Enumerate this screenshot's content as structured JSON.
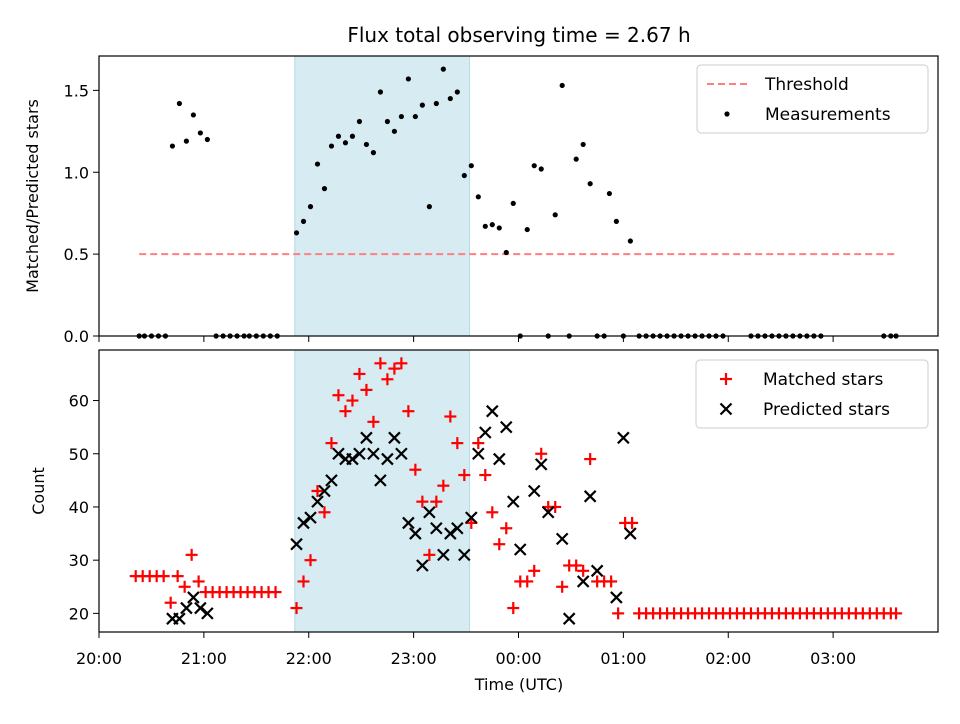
{
  "title": "Flux total observing time = 2.67 h",
  "colors": {
    "threshold": "#ff7f7f",
    "measurements": "#000000",
    "matched": "#ff0000",
    "predicted": "#000000",
    "shade": "#add8e6"
  },
  "chart_data": [
    {
      "type": "scatter",
      "ylabel": "Matched/Predicted stars",
      "xlim": [
        "20:00",
        "04:00"
      ],
      "ylim": [
        0,
        1.71
      ],
      "yticks": [
        0.0,
        0.5,
        1.0,
        1.5
      ],
      "ytick_labels": [
        "0.0",
        "0.5",
        "1.0",
        "1.5"
      ],
      "shaded_interval": [
        "21:52",
        "23:32"
      ],
      "legend_position": "upper right",
      "threshold": {
        "name": "Threshold",
        "style": "dashed",
        "y": 0.5,
        "x_range": [
          "20:23",
          "03:36"
        ]
      },
      "measurements": {
        "name": "Measurements",
        "points": [
          [
            "20:23",
            0
          ],
          [
            "20:26",
            0
          ],
          [
            "20:30",
            0
          ],
          [
            "20:34",
            0
          ],
          [
            "20:38",
            0
          ],
          [
            "20:42",
            1.16
          ],
          [
            "20:46",
            1.42
          ],
          [
            "20:50",
            1.19
          ],
          [
            "20:54",
            1.35
          ],
          [
            "20:58",
            1.24
          ],
          [
            "21:02",
            1.2
          ],
          [
            "21:07",
            0
          ],
          [
            "21:11",
            0
          ],
          [
            "21:15",
            0
          ],
          [
            "21:19",
            0
          ],
          [
            "21:23",
            0
          ],
          [
            "21:26",
            0
          ],
          [
            "21:30",
            0
          ],
          [
            "21:34",
            0
          ],
          [
            "21:38",
            0
          ],
          [
            "21:42",
            0
          ],
          [
            "21:53",
            0.63
          ],
          [
            "21:57",
            0.7
          ],
          [
            "22:01",
            0.79
          ],
          [
            "22:05",
            1.05
          ],
          [
            "22:09",
            0.9
          ],
          [
            "22:13",
            1.16
          ],
          [
            "22:17",
            1.22
          ],
          [
            "22:21",
            1.18
          ],
          [
            "22:25",
            1.22
          ],
          [
            "22:29",
            1.31
          ],
          [
            "22:33",
            1.17
          ],
          [
            "22:37",
            1.12
          ],
          [
            "22:41",
            1.49
          ],
          [
            "22:45",
            1.31
          ],
          [
            "22:49",
            1.25
          ],
          [
            "22:53",
            1.34
          ],
          [
            "22:57",
            1.57
          ],
          [
            "23:01",
            1.34
          ],
          [
            "23:05",
            1.41
          ],
          [
            "23:09",
            0.79
          ],
          [
            "23:13",
            1.42
          ],
          [
            "23:17",
            1.63
          ],
          [
            "23:21",
            1.45
          ],
          [
            "23:25",
            1.49
          ],
          [
            "23:29",
            0.98
          ],
          [
            "23:33",
            1.04
          ],
          [
            "23:37",
            0.85
          ],
          [
            "23:41",
            0.67
          ],
          [
            "23:45",
            0.68
          ],
          [
            "23:49",
            0.66
          ],
          [
            "23:53",
            0.51
          ],
          [
            "23:57",
            0.81
          ],
          [
            "00:01",
            0
          ],
          [
            "00:05",
            0.65
          ],
          [
            "00:09",
            1.04
          ],
          [
            "00:13",
            1.02
          ],
          [
            "00:17",
            0
          ],
          [
            "00:21",
            0.74
          ],
          [
            "00:25",
            1.53
          ],
          [
            "00:29",
            0
          ],
          [
            "00:33",
            1.08
          ],
          [
            "00:37",
            1.17
          ],
          [
            "00:41",
            0.93
          ],
          [
            "00:45",
            0
          ],
          [
            "00:49",
            0
          ],
          [
            "00:52",
            0.87
          ],
          [
            "00:56",
            0.7
          ],
          [
            "01:00",
            0
          ],
          [
            "01:04",
            0.58
          ],
          [
            "01:09",
            0
          ],
          [
            "01:13",
            0
          ],
          [
            "01:17",
            0
          ],
          [
            "01:21",
            0
          ],
          [
            "01:25",
            0
          ],
          [
            "01:29",
            0
          ],
          [
            "01:33",
            0
          ],
          [
            "01:37",
            0
          ],
          [
            "01:41",
            0
          ],
          [
            "01:45",
            0
          ],
          [
            "01:49",
            0
          ],
          [
            "01:53",
            0
          ],
          [
            "01:57",
            0
          ],
          [
            "02:13",
            0
          ],
          [
            "02:17",
            0
          ],
          [
            "02:21",
            0
          ],
          [
            "02:25",
            0
          ],
          [
            "02:29",
            0
          ],
          [
            "02:33",
            0
          ],
          [
            "02:37",
            0
          ],
          [
            "02:41",
            0
          ],
          [
            "02:45",
            0
          ],
          [
            "02:49",
            0
          ],
          [
            "02:53",
            0
          ],
          [
            "03:29",
            0
          ],
          [
            "03:33",
            0
          ],
          [
            "03:36",
            0
          ]
        ]
      }
    },
    {
      "type": "scatter",
      "ylabel": "Count",
      "xlabel": "Time (UTC)",
      "xlim": [
        "20:00",
        "04:00"
      ],
      "ylim": [
        16.5,
        69.5
      ],
      "yticks": [
        20,
        30,
        40,
        50,
        60
      ],
      "ytick_labels": [
        "20",
        "30",
        "40",
        "50",
        "60"
      ],
      "xticks": [
        "20:00",
        "21:00",
        "22:00",
        "23:00",
        "00:00",
        "01:00",
        "02:00",
        "03:00"
      ],
      "shaded_interval": [
        "21:52",
        "23:32"
      ],
      "legend_position": "upper right",
      "series": [
        {
          "name": "Matched stars",
          "marker": "plus",
          "points": [
            [
              "20:21",
              27
            ],
            [
              "20:25",
              27
            ],
            [
              "20:29",
              27
            ],
            [
              "20:33",
              27
            ],
            [
              "20:37",
              27
            ],
            [
              "20:41",
              22
            ],
            [
              "20:45",
              27
            ],
            [
              "20:49",
              25
            ],
            [
              "20:53",
              31
            ],
            [
              "20:57",
              26
            ],
            [
              "21:01",
              24
            ],
            [
              "21:05",
              24
            ],
            [
              "21:09",
              24
            ],
            [
              "21:13",
              24
            ],
            [
              "21:17",
              24
            ],
            [
              "21:21",
              24
            ],
            [
              "21:25",
              24
            ],
            [
              "21:29",
              24
            ],
            [
              "21:33",
              24
            ],
            [
              "21:37",
              24
            ],
            [
              "21:41",
              24
            ],
            [
              "21:53",
              21
            ],
            [
              "21:57",
              26
            ],
            [
              "22:01",
              30
            ],
            [
              "22:05",
              43
            ],
            [
              "22:09",
              39
            ],
            [
              "22:13",
              52
            ],
            [
              "22:17",
              61
            ],
            [
              "22:21",
              58
            ],
            [
              "22:25",
              60
            ],
            [
              "22:29",
              65
            ],
            [
              "22:33",
              62
            ],
            [
              "22:37",
              56
            ],
            [
              "22:41",
              67
            ],
            [
              "22:45",
              64
            ],
            [
              "22:49",
              66
            ],
            [
              "22:53",
              67
            ],
            [
              "22:57",
              58
            ],
            [
              "23:01",
              47
            ],
            [
              "23:05",
              41
            ],
            [
              "23:09",
              31
            ],
            [
              "23:13",
              41
            ],
            [
              "23:17",
              44
            ],
            [
              "23:21",
              57
            ],
            [
              "23:25",
              52
            ],
            [
              "23:29",
              46
            ],
            [
              "23:33",
              37
            ],
            [
              "23:37",
              52
            ],
            [
              "23:41",
              46
            ],
            [
              "23:45",
              39
            ],
            [
              "23:49",
              33
            ],
            [
              "23:53",
              36
            ],
            [
              "23:57",
              21
            ],
            [
              "00:01",
              26
            ],
            [
              "00:05",
              26
            ],
            [
              "00:09",
              28
            ],
            [
              "00:13",
              50
            ],
            [
              "00:17",
              40
            ],
            [
              "00:21",
              40
            ],
            [
              "00:25",
              25
            ],
            [
              "00:29",
              29
            ],
            [
              "00:33",
              29
            ],
            [
              "00:37",
              28
            ],
            [
              "00:41",
              49
            ],
            [
              "00:45",
              26
            ],
            [
              "00:49",
              26
            ],
            [
              "00:53",
              26
            ],
            [
              "00:57",
              20
            ],
            [
              "01:01",
              37
            ],
            [
              "01:05",
              37
            ],
            [
              "01:09",
              20
            ],
            [
              "01:13",
              20
            ],
            [
              "01:17",
              20
            ],
            [
              "01:21",
              20
            ],
            [
              "01:25",
              20
            ],
            [
              "01:29",
              20
            ],
            [
              "01:33",
              20
            ],
            [
              "01:37",
              20
            ],
            [
              "01:41",
              20
            ],
            [
              "01:45",
              20
            ],
            [
              "01:49",
              20
            ],
            [
              "01:53",
              20
            ],
            [
              "01:57",
              20
            ],
            [
              "02:01",
              20
            ],
            [
              "02:05",
              20
            ],
            [
              "02:09",
              20
            ],
            [
              "02:13",
              20
            ],
            [
              "02:17",
              20
            ],
            [
              "02:21",
              20
            ],
            [
              "02:25",
              20
            ],
            [
              "02:29",
              20
            ],
            [
              "02:33",
              20
            ],
            [
              "02:37",
              20
            ],
            [
              "02:41",
              20
            ],
            [
              "02:45",
              20
            ],
            [
              "02:49",
              20
            ],
            [
              "02:53",
              20
            ],
            [
              "02:57",
              20
            ],
            [
              "03:01",
              20
            ],
            [
              "03:05",
              20
            ],
            [
              "03:09",
              20
            ],
            [
              "03:13",
              20
            ],
            [
              "03:17",
              20
            ],
            [
              "03:21",
              20
            ],
            [
              "03:25",
              20
            ],
            [
              "03:29",
              20
            ],
            [
              "03:33",
              20
            ],
            [
              "03:36",
              20
            ]
          ]
        },
        {
          "name": "Predicted stars",
          "marker": "x",
          "points": [
            [
              "20:42",
              19
            ],
            [
              "20:46",
              19
            ],
            [
              "20:50",
              21
            ],
            [
              "20:54",
              23
            ],
            [
              "20:58",
              21
            ],
            [
              "21:02",
              20
            ],
            [
              "21:53",
              33
            ],
            [
              "21:57",
              37
            ],
            [
              "22:01",
              38
            ],
            [
              "22:05",
              41
            ],
            [
              "22:09",
              43
            ],
            [
              "22:13",
              45
            ],
            [
              "22:17",
              50
            ],
            [
              "22:21",
              49
            ],
            [
              "22:25",
              49
            ],
            [
              "22:29",
              50
            ],
            [
              "22:33",
              53
            ],
            [
              "22:37",
              50
            ],
            [
              "22:41",
              45
            ],
            [
              "22:45",
              49
            ],
            [
              "22:49",
              53
            ],
            [
              "22:53",
              50
            ],
            [
              "22:57",
              37
            ],
            [
              "23:01",
              35
            ],
            [
              "23:05",
              29
            ],
            [
              "23:09",
              39
            ],
            [
              "23:13",
              36
            ],
            [
              "23:17",
              31
            ],
            [
              "23:21",
              35
            ],
            [
              "23:25",
              36
            ],
            [
              "23:29",
              31
            ],
            [
              "23:33",
              38
            ],
            [
              "23:37",
              50
            ],
            [
              "23:41",
              54
            ],
            [
              "23:45",
              58
            ],
            [
              "23:49",
              49
            ],
            [
              "23:53",
              55
            ],
            [
              "23:57",
              41
            ],
            [
              "00:01",
              32
            ],
            [
              "00:09",
              43
            ],
            [
              "00:13",
              48
            ],
            [
              "00:17",
              39
            ],
            [
              "00:25",
              34
            ],
            [
              "00:29",
              19
            ],
            [
              "00:37",
              26
            ],
            [
              "00:41",
              42
            ],
            [
              "00:45",
              28
            ],
            [
              "00:56",
              23
            ],
            [
              "01:00",
              53
            ],
            [
              "01:04",
              35
            ]
          ]
        }
      ]
    }
  ]
}
